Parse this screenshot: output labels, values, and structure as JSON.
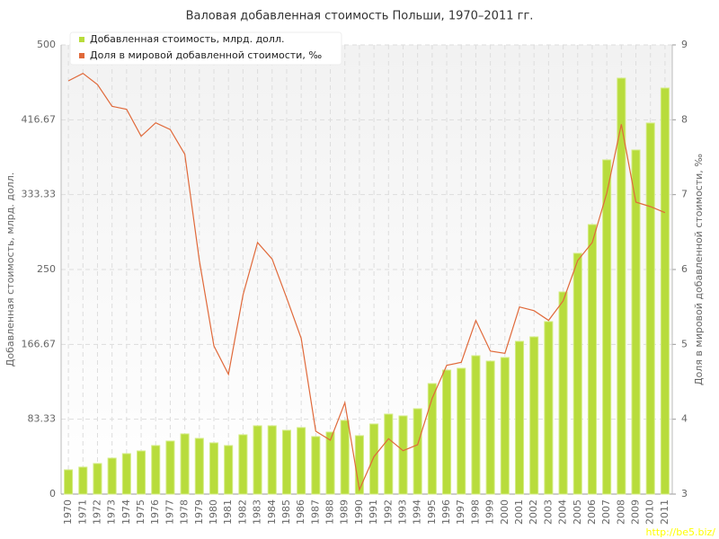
{
  "chart_data": {
    "type": "bar_line",
    "title": "Валовая добавленная стоимость Польши, 1970–2011 гг.",
    "y_label": "Добавленная стоимость, млрд. долл.",
    "y2_label": "Доля в мировой добавленной стоимости, ‰",
    "watermark": "http://be5.biz/",
    "categories": [
      "1970",
      "1971",
      "1972",
      "1973",
      "1974",
      "1975",
      "1976",
      "1977",
      "1978",
      "1979",
      "1980",
      "1981",
      "1982",
      "1983",
      "1984",
      "1985",
      "1986",
      "1987",
      "1988",
      "1989",
      "1990",
      "1991",
      "1992",
      "1993",
      "1994",
      "1995",
      "1996",
      "1997",
      "1998",
      "1999",
      "2000",
      "2001",
      "2002",
      "2003",
      "2004",
      "2005",
      "2006",
      "2007",
      "2008",
      "2009",
      "2010",
      "2011"
    ],
    "series": [
      {
        "name": "Добавленная стоимость, млрд. долл.",
        "color": "#b8dc3c",
        "type": "bar",
        "values": [
          27,
          30,
          34,
          40,
          45,
          48,
          54,
          59,
          67,
          62,
          57,
          54,
          66,
          76,
          76,
          71,
          74,
          64,
          69,
          82,
          65,
          78,
          89,
          87,
          95,
          123,
          138,
          140,
          154,
          148,
          152,
          170,
          175,
          192,
          225,
          268,
          300,
          372,
          463,
          383,
          413,
          452
        ]
      },
      {
        "name": "Доля в мировой добавленной стоимости, ‰",
        "color": "#e0693a",
        "type": "line",
        "axis": "y2",
        "values": [
          8.52,
          8.62,
          8.47,
          8.18,
          8.14,
          7.78,
          7.96,
          7.87,
          7.54,
          6.12,
          4.98,
          4.6,
          5.66,
          6.36,
          6.14,
          5.62,
          5.08,
          3.84,
          3.72,
          4.22,
          3.06,
          3.5,
          3.74,
          3.58,
          3.66,
          4.28,
          4.72,
          4.76,
          5.32,
          4.91,
          4.88,
          5.5,
          5.45,
          5.32,
          5.58,
          6.12,
          6.36,
          7.02,
          7.94,
          6.9,
          6.84,
          6.76
        ]
      }
    ],
    "ylim": [
      0,
      500
    ],
    "yticks": [
      0,
      83.33,
      166.67,
      250,
      333.33,
      416.67,
      500
    ],
    "y2lim": [
      3,
      9
    ],
    "y2ticks": [
      3,
      4,
      5,
      6,
      7,
      8,
      9
    ],
    "grid": true,
    "legend": "top-left"
  }
}
